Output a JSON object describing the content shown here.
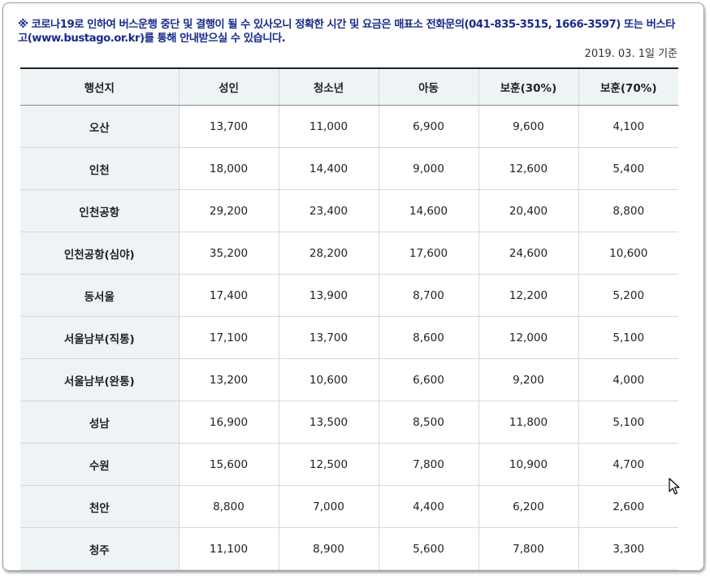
{
  "notice": "※ 코로나19로 인하여 버스운행 중단 및 결행이 될 수 있사오니 정확한 시간 및 요금은 매표소 전화문의(041-835-3515, 1666-3597) 또는 버스타고(www.bustago.or.kr)를 통해 안내받으실 수 있습니다.",
  "as_of": "2019. 03. 1일 기준",
  "table": {
    "headers": [
      "행선지",
      "성인",
      "청소년",
      "아동",
      "보훈(30%)",
      "보훈(70%)"
    ],
    "rows": [
      [
        "오산",
        "13,700",
        "11,000",
        "6,900",
        "9,600",
        "4,100"
      ],
      [
        "인천",
        "18,000",
        "14,400",
        "9,000",
        "12,600",
        "5,400"
      ],
      [
        "인천공항",
        "29,200",
        "23,400",
        "14,600",
        "20,400",
        "8,800"
      ],
      [
        "인천공항(심야)",
        "35,200",
        "28,200",
        "17,600",
        "24,600",
        "10,600"
      ],
      [
        "동서울",
        "17,400",
        "13,900",
        "8,700",
        "12,200",
        "5,200"
      ],
      [
        "서울남부(직통)",
        "17,100",
        "13,700",
        "8,600",
        "12,000",
        "5,100"
      ],
      [
        "서울남부(완통)",
        "13,200",
        "10,600",
        "6,600",
        "9,200",
        "4,000"
      ],
      [
        "성남",
        "16,900",
        "13,500",
        "8,500",
        "11,800",
        "5,100"
      ],
      [
        "수원",
        "15,600",
        "12,500",
        "7,800",
        "10,900",
        "4,700"
      ],
      [
        "천안",
        "8,800",
        "7,000",
        "4,400",
        "6,200",
        "2,600"
      ],
      [
        "청주",
        "11,100",
        "8,900",
        "5,600",
        "7,800",
        "3,300"
      ]
    ]
  },
  "cursor_icon": "mouse-pointer-icon"
}
